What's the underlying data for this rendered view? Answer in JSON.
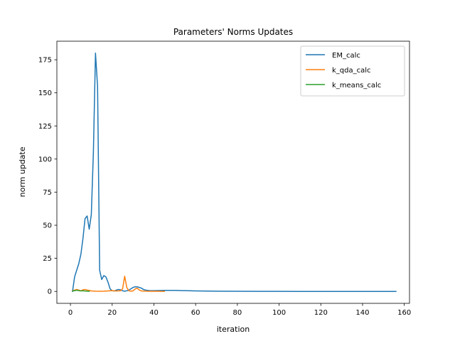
{
  "chart_data": {
    "type": "line",
    "title": "Parameters' Norms Updates",
    "xlabel": "iteration",
    "ylabel": "norm update",
    "xlim": [
      -6.5,
      162.5
    ],
    "ylim": [
      -9,
      189
    ],
    "xticks": [
      0,
      20,
      40,
      60,
      80,
      100,
      120,
      140,
      160
    ],
    "yticks": [
      0,
      25,
      50,
      75,
      100,
      125,
      150,
      175
    ],
    "grid": false,
    "legend_position": "top-right",
    "series": [
      {
        "name": "EM_calc",
        "color": "#1f77b4",
        "x": [
          1,
          2,
          3,
          4,
          5,
          6,
          7,
          8,
          9,
          10,
          11,
          12,
          13,
          14,
          15,
          16,
          17,
          18,
          19,
          20,
          21,
          22,
          23,
          24,
          25,
          26,
          27,
          28,
          29,
          30,
          31,
          32,
          33,
          34,
          35,
          36,
          38,
          40,
          45,
          50,
          55,
          60,
          70,
          80,
          90,
          100,
          110,
          120,
          130,
          140,
          150,
          156
        ],
        "y": [
          0,
          11,
          16,
          21,
          28,
          40,
          55,
          57,
          47,
          58,
          105,
          180,
          155,
          16,
          9,
          12,
          11,
          7,
          2,
          0.5,
          0.3,
          1,
          1.5,
          1.2,
          0.5,
          0.2,
          0.5,
          1,
          2,
          3,
          3.5,
          3.5,
          3,
          2.5,
          1.5,
          1,
          0.6,
          0.6,
          0.8,
          0.8,
          0.6,
          0.4,
          0.2,
          0.1,
          0.05,
          0.05,
          0.02,
          0.02,
          0.02,
          0.01,
          0.01,
          0.01
        ]
      },
      {
        "name": "k_qda_calc",
        "color": "#ff7f0e",
        "x": [
          1,
          2,
          3,
          4,
          5,
          6,
          7,
          8,
          9,
          10,
          12,
          14,
          16,
          18,
          20,
          22,
          24,
          25,
          26,
          27,
          28,
          29,
          30,
          31,
          32,
          33,
          34,
          36,
          38,
          40,
          42,
          44,
          45
        ],
        "y": [
          0.5,
          1,
          1.5,
          1,
          0.5,
          1.2,
          1.5,
          1,
          0.8,
          0.4,
          0.2,
          0.1,
          0.2,
          0.4,
          0.6,
          0.3,
          0.5,
          2,
          11.5,
          3,
          0.5,
          0.2,
          0.4,
          1.8,
          2.5,
          1,
          0.4,
          0.2,
          0.1,
          0.1,
          0.1,
          0.05,
          0.05
        ]
      },
      {
        "name": "k_means_calc",
        "color": "#2ca02c",
        "x": [
          1,
          2,
          3,
          4,
          5,
          6,
          7,
          8,
          9
        ],
        "y": [
          0.3,
          0.6,
          0.9,
          0.6,
          0.4,
          0.5,
          0.3,
          0.2,
          0.1
        ]
      }
    ]
  }
}
